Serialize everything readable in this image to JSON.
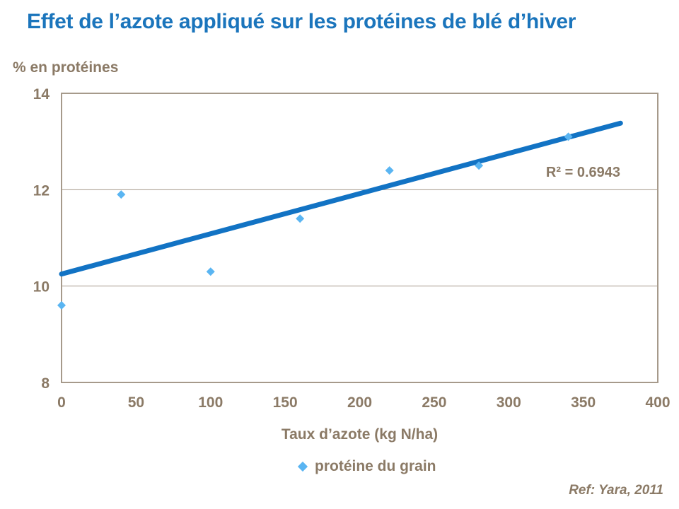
{
  "title": "Effet de l’azote appliqué sur les protéines de blé d’hiver",
  "reference": "Ref: Yara, 2011",
  "colors": {
    "title_blue": "#1B75BC",
    "trend_blue": "#1273C4",
    "marker_blue": "#5AB5F2",
    "text_brown": "#8B7A66",
    "axis_taupe": "#A69A8B"
  },
  "chart_data": {
    "type": "scatter",
    "title": "Effet de l’azote appliqué sur les protéines de blé d’hiver",
    "xlabel": "Taux d’azote (kg N/ha)",
    "ylabel": "% en protéines",
    "xlim": [
      0,
      400
    ],
    "ylim": [
      8,
      14
    ],
    "xticks": [
      0,
      50,
      100,
      150,
      200,
      250,
      300,
      350,
      400
    ],
    "yticks": [
      8,
      10,
      12,
      14
    ],
    "grid": "horizontal",
    "legend_position": "bottom",
    "series": [
      {
        "name": "protéine du grain",
        "marker": "diamond",
        "points": [
          [
            0,
            9.6
          ],
          [
            40,
            11.9
          ],
          [
            100,
            10.3
          ],
          [
            160,
            11.4
          ],
          [
            220,
            12.4
          ],
          [
            280,
            12.5
          ],
          [
            340,
            13.1
          ]
        ]
      }
    ],
    "trendline": {
      "x_start": 0,
      "y_start": 10.25,
      "x_end": 375,
      "y_end": 13.38,
      "label": "R² = 0.6943"
    }
  }
}
